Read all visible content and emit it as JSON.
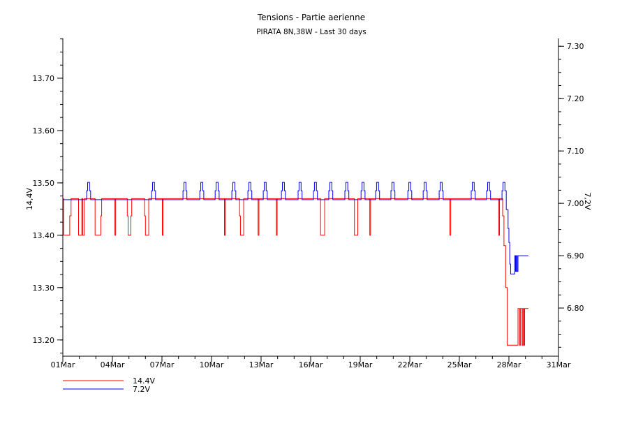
{
  "chart_data": {
    "type": "line",
    "title": "Tensions - Partie aerienne",
    "subtitle": "PIRATA 8N,38W - Last 30 days",
    "xlabel": "",
    "ylabel_left": "14,4V",
    "ylabel_right": "7,2V",
    "x_unit": "days since 01Mar",
    "xlim": [
      0,
      30
    ],
    "x_ticks": [
      {
        "day": 0,
        "label": "01Mar"
      },
      {
        "day": 3,
        "label": "04Mar"
      },
      {
        "day": 6,
        "label": "07Mar"
      },
      {
        "day": 9,
        "label": "10Mar"
      },
      {
        "day": 12,
        "label": "13Mar"
      },
      {
        "day": 15,
        "label": "16Mar"
      },
      {
        "day": 18,
        "label": "19Mar"
      },
      {
        "day": 21,
        "label": "22Mar"
      },
      {
        "day": 24,
        "label": "25Mar"
      },
      {
        "day": 27,
        "label": "28Mar"
      },
      {
        "day": 30,
        "label": "31Mar"
      }
    ],
    "ylim_left": [
      13.169,
      13.776
    ],
    "yticks_left": [
      "13.20",
      "13.30",
      "13.40",
      "13.50",
      "13.60",
      "13.70"
    ],
    "ylim_right": [
      6.708,
      7.315
    ],
    "yticks_right": [
      "6.80",
      "6.90",
      "7.00",
      "7.10",
      "7.20",
      "7.30"
    ],
    "grid": false,
    "legend_position": "bottom-left",
    "series": [
      {
        "name": "14.4V",
        "axis": "left",
        "color": "#ff0000",
        "step": true,
        "points": [
          [
            0,
            13.47
          ],
          [
            0.05,
            13.4
          ],
          [
            0.42,
            13.437
          ],
          [
            0.5,
            13.47
          ],
          [
            0.95,
            13.4
          ],
          [
            1.15,
            13.47
          ],
          [
            1.2,
            13.4
          ],
          [
            1.3,
            13.47
          ],
          [
            1.95,
            13.4
          ],
          [
            2.3,
            13.437
          ],
          [
            2.35,
            13.47
          ],
          [
            3.15,
            13.4
          ],
          [
            3.2,
            13.47
          ],
          [
            3.9,
            13.437
          ],
          [
            3.95,
            13.4
          ],
          [
            4.12,
            13.437
          ],
          [
            4.17,
            13.47
          ],
          [
            4.95,
            13.437
          ],
          [
            5.0,
            13.4
          ],
          [
            5.2,
            13.47
          ],
          [
            6.02,
            13.4
          ],
          [
            6.07,
            13.47
          ],
          [
            9.78,
            13.4
          ],
          [
            9.83,
            13.47
          ],
          [
            10.7,
            13.437
          ],
          [
            10.75,
            13.4
          ],
          [
            10.95,
            13.47
          ],
          [
            11.82,
            13.4
          ],
          [
            11.87,
            13.47
          ],
          [
            12.92,
            13.4
          ],
          [
            12.97,
            13.47
          ],
          [
            15.6,
            13.4
          ],
          [
            15.85,
            13.47
          ],
          [
            17.65,
            13.4
          ],
          [
            17.85,
            13.47
          ],
          [
            18.58,
            13.4
          ],
          [
            18.63,
            13.47
          ],
          [
            23.43,
            13.4
          ],
          [
            23.48,
            13.47
          ],
          [
            26.38,
            13.4
          ],
          [
            26.43,
            13.47
          ],
          [
            26.62,
            13.437
          ],
          [
            26.7,
            13.38
          ],
          [
            26.8,
            13.3
          ],
          [
            26.9,
            13.19
          ],
          [
            27.55,
            13.26
          ],
          [
            27.65,
            13.19
          ],
          [
            27.7,
            13.26
          ],
          [
            27.8,
            13.19
          ],
          [
            27.85,
            13.26
          ],
          [
            27.9,
            13.19
          ],
          [
            27.95,
            13.26
          ],
          [
            28.18,
            13.26
          ]
        ]
      },
      {
        "name": "7.2V",
        "axis": "right",
        "color": "#0000ff",
        "step": true,
        "baseline": 7.007,
        "peaks_days": [
          1.56,
          5.49,
          7.39,
          8.41,
          9.34,
          10.35,
          11.32,
          12.25,
          13.35,
          14.36,
          15.29,
          16.22,
          17.19,
          18.17,
          19.05,
          19.98,
          21.0,
          21.93,
          22.9,
          24.84,
          25.77,
          26.7
        ],
        "peak_levels": [
          7.024,
          7.04
        ],
        "tail_points": [
          [
            26.84,
            6.988
          ],
          [
            26.95,
            6.952
          ],
          [
            27.0,
            6.925
          ],
          [
            27.05,
            6.884
          ],
          [
            27.1,
            6.865
          ],
          [
            27.35,
            6.9
          ],
          [
            27.4,
            6.87
          ],
          [
            27.45,
            6.9
          ],
          [
            27.5,
            6.87
          ],
          [
            27.55,
            6.9
          ],
          [
            28.18,
            6.9
          ]
        ]
      }
    ]
  }
}
